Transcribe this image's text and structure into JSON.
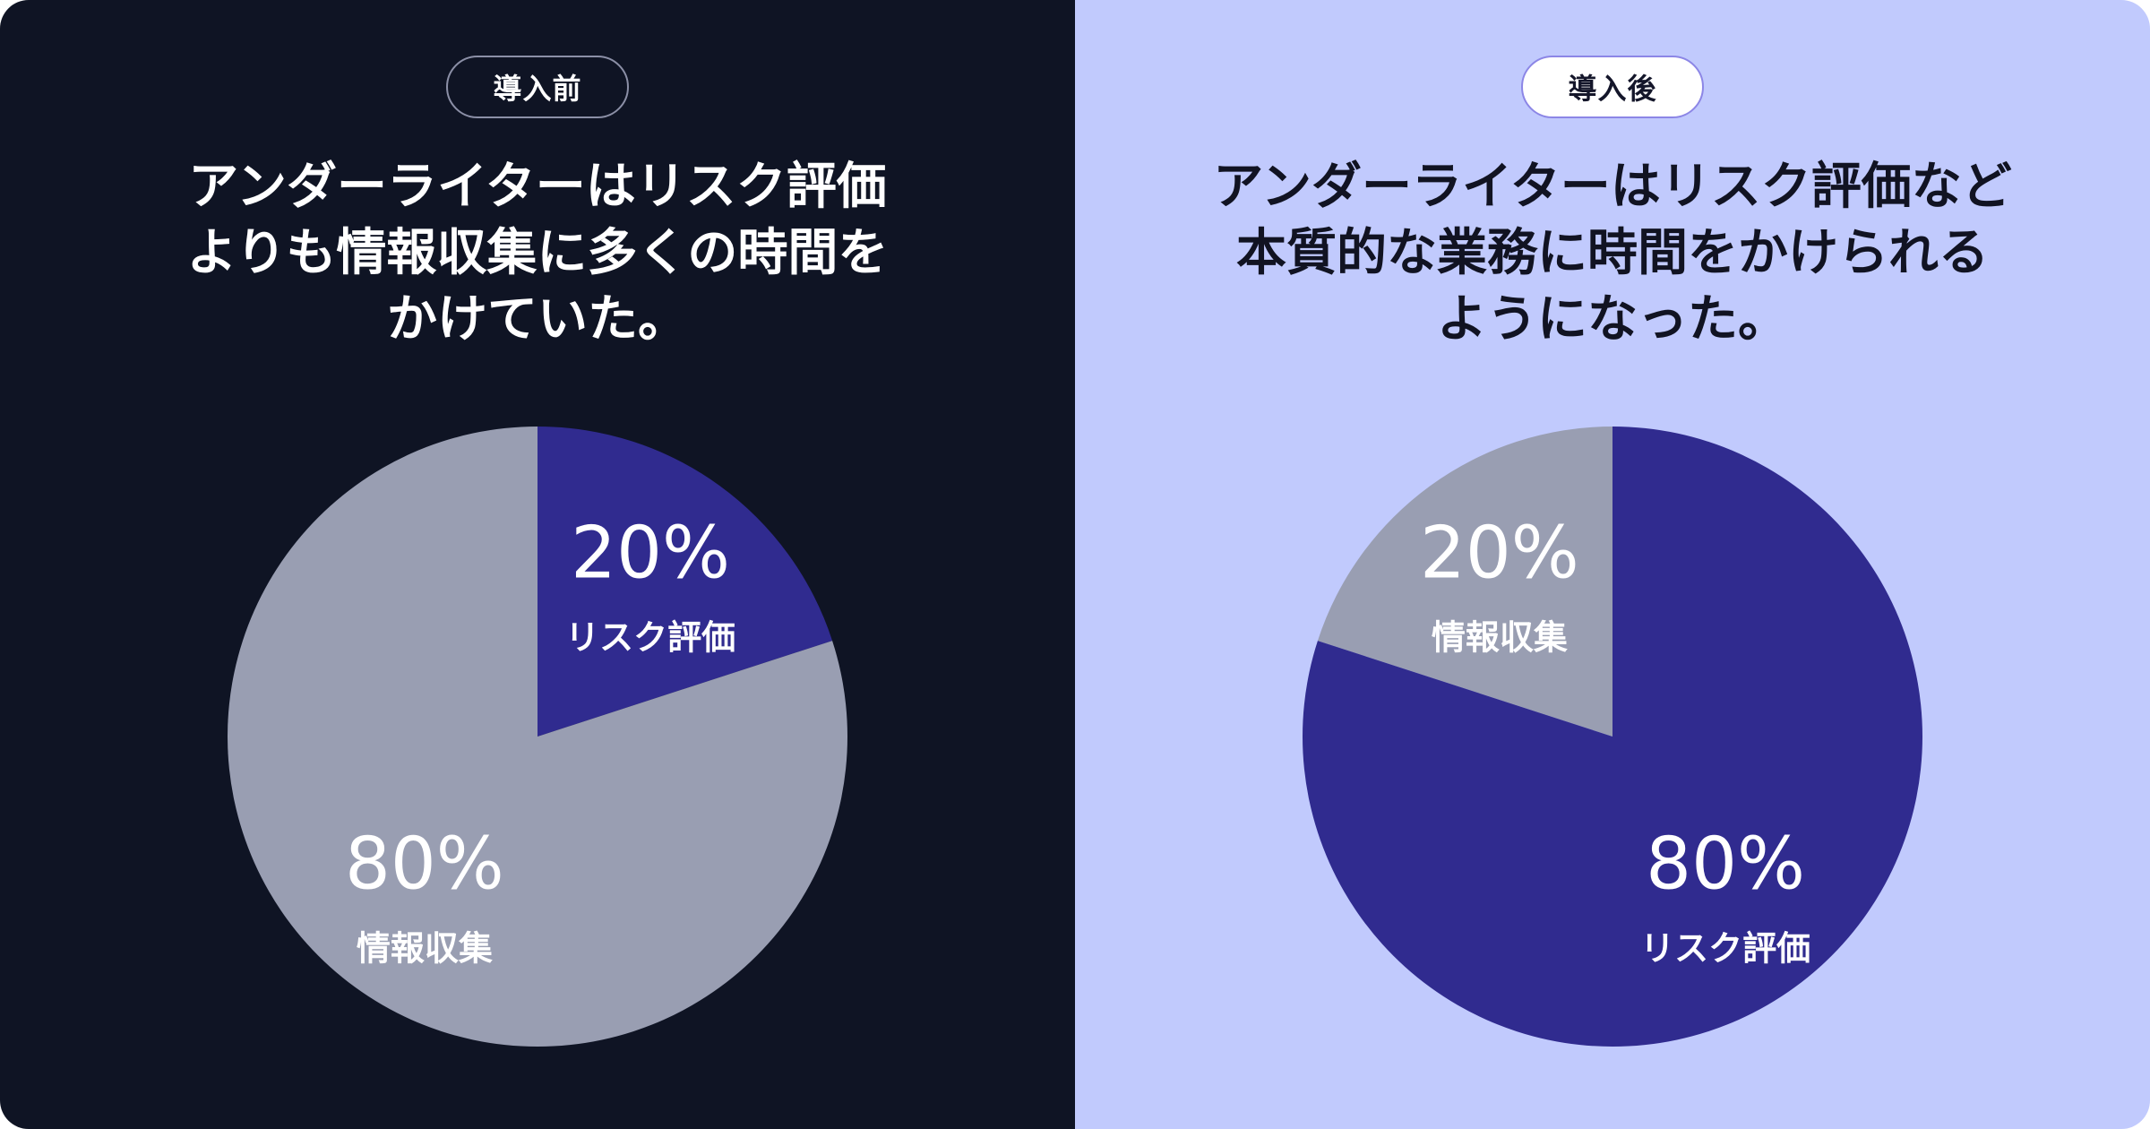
{
  "panels": [
    {
      "badge": "導入前",
      "headline": [
        "アンダーライターはリスク評価",
        "よりも情報収集に多くの時間を",
        "かけていた。"
      ]
    },
    {
      "badge": "導入後",
      "headline": [
        "アンダーライターはリスク評価など",
        "本質的な業務に時間をかけられる",
        "ようになった。"
      ]
    }
  ],
  "colors": {
    "before_background": "#0f1424",
    "after_background": "#c1cafd",
    "risk_slice": "#302b8f",
    "info_slice": "#999eb2"
  },
  "chart_data": [
    {
      "type": "pie",
      "title": "",
      "start": "12 o'clock, clockwise",
      "slices": [
        {
          "label": "リスク評価",
          "value": 20,
          "display": "20%",
          "color": "#302b8f"
        },
        {
          "label": "情報収集",
          "value": 80,
          "display": "80%",
          "color": "#999eb2"
        }
      ]
    },
    {
      "type": "pie",
      "title": "",
      "start": "12 o'clock, counter-clockwise",
      "slices": [
        {
          "label": "情報収集",
          "value": 20,
          "display": "20%",
          "color": "#999eb2"
        },
        {
          "label": "リスク評価",
          "value": 80,
          "display": "80%",
          "color": "#302b8f"
        }
      ]
    }
  ]
}
